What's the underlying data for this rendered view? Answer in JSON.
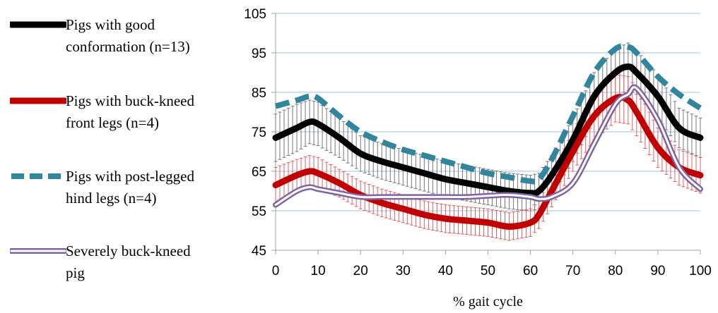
{
  "chart_data": {
    "type": "line",
    "title": "",
    "xlabel": "% gait cycle",
    "ylabel": "",
    "xlim": [
      0,
      100
    ],
    "ylim": [
      45,
      105
    ],
    "xticks": [
      0,
      10,
      20,
      30,
      40,
      50,
      60,
      70,
      80,
      90,
      100
    ],
    "yticks": [
      45,
      55,
      65,
      75,
      85,
      95,
      105
    ],
    "grid": "horizontal",
    "legend_position": "left",
    "x": [
      0,
      5,
      8,
      10,
      15,
      20,
      25,
      30,
      35,
      40,
      45,
      50,
      55,
      60,
      62,
      65,
      70,
      75,
      80,
      83,
      85,
      90,
      95,
      100
    ],
    "series": [
      {
        "name": "Pigs with good conformation (n=13)",
        "label_lines": [
          "Pigs with good",
          "conformation (n=13)"
        ],
        "color": "#000000",
        "style": "solid-thick",
        "error_bar_color": "#777777",
        "values": [
          73.5,
          76,
          77.5,
          77,
          73.5,
          69.5,
          67.5,
          66,
          64.5,
          63,
          62,
          61,
          60,
          59.5,
          60,
          64,
          73,
          84,
          90,
          91.5,
          90,
          84,
          76,
          73.5
        ],
        "errors": [
          6,
          6,
          5.5,
          5.5,
          5,
          4.5,
          4.5,
          4.5,
          4.5,
          4.5,
          4.5,
          4.5,
          4.5,
          4.5,
          4.5,
          5,
          5.5,
          6,
          6,
          6,
          5.5,
          5.5,
          5,
          5
        ]
      },
      {
        "name": "Pigs with buck-kneed front legs (n=4)",
        "label_lines": [
          "Pigs with buck-kneed",
          "front legs (n=4)"
        ],
        "color": "#c00000",
        "style": "solid-thick",
        "error_bar_color": "#e06060",
        "values": [
          61.5,
          64,
          65,
          64.5,
          62,
          59,
          57,
          55.5,
          54,
          53,
          52.5,
          52,
          51,
          52,
          54,
          60,
          70,
          79,
          83.5,
          83,
          80,
          71,
          66,
          64
        ],
        "errors": [
          4.5,
          4,
          4,
          4,
          3.5,
          3.5,
          3.5,
          3.5,
          3.5,
          3.5,
          3.5,
          3.5,
          3.5,
          3.5,
          3.5,
          4,
          5,
          6,
          6,
          6,
          6,
          5,
          4.5,
          4.5
        ]
      },
      {
        "name": "Pigs with post-legged hind legs (n=4)",
        "label_lines": [
          "Pigs with post-legged",
          "hind legs (n=4)"
        ],
        "color": "#31859c",
        "style": "dashed-thick",
        "values": [
          81.5,
          83,
          84,
          83.5,
          79,
          75,
          72.5,
          70.5,
          69,
          67.5,
          66,
          64.5,
          63.5,
          62.5,
          63,
          68,
          79,
          90,
          96,
          96.5,
          95,
          89,
          84.5,
          81
        ],
        "errors": []
      },
      {
        "name": "Severely buck-kneed pig",
        "label_lines": [
          "Severely buck-kneed",
          "pig"
        ],
        "color": "#8064a2",
        "style": "double-line",
        "values": [
          56.5,
          60,
          61,
          60.5,
          59.5,
          58.5,
          58.5,
          58.5,
          58.5,
          58.5,
          58.5,
          58.8,
          59,
          58.5,
          58,
          58.5,
          62,
          72,
          82,
          84.5,
          86,
          78,
          66,
          60.5
        ],
        "errors": []
      }
    ]
  }
}
